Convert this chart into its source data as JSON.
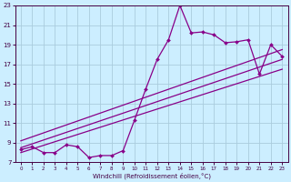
{
  "xlabel": "Windchill (Refroidissement éolien,°C)",
  "background_color": "#cceeff",
  "grid_color": "#aaccdd",
  "line_color": "#880088",
  "tick_color": "#440044",
  "xlim": [
    -0.5,
    23.5
  ],
  "ylim": [
    7,
    23
  ],
  "xticks": [
    0,
    1,
    2,
    3,
    4,
    5,
    6,
    7,
    8,
    9,
    10,
    11,
    12,
    13,
    14,
    15,
    16,
    17,
    18,
    19,
    20,
    21,
    22,
    23
  ],
  "yticks": [
    7,
    9,
    11,
    13,
    15,
    17,
    19,
    21,
    23
  ],
  "series1_x": [
    0,
    1,
    2,
    3,
    4,
    5,
    6,
    7,
    8,
    9,
    10,
    11,
    12,
    13,
    14,
    15,
    16,
    17,
    18,
    19,
    20,
    21,
    22,
    23
  ],
  "series1_y": [
    8.3,
    8.6,
    8.0,
    8.0,
    8.8,
    8.6,
    7.5,
    7.7,
    7.7,
    8.2,
    11.3,
    14.5,
    17.5,
    19.5,
    23.0,
    20.2,
    20.3,
    20.0,
    19.2,
    19.3,
    19.5,
    16.0,
    19.0,
    17.8
  ],
  "line2_x": [
    0,
    23
  ],
  "line2_y": [
    8.0,
    16.5
  ],
  "line3_x": [
    0,
    23
  ],
  "line3_y": [
    8.5,
    17.5
  ],
  "line4_x": [
    0,
    23
  ],
  "line4_y": [
    9.2,
    18.5
  ]
}
